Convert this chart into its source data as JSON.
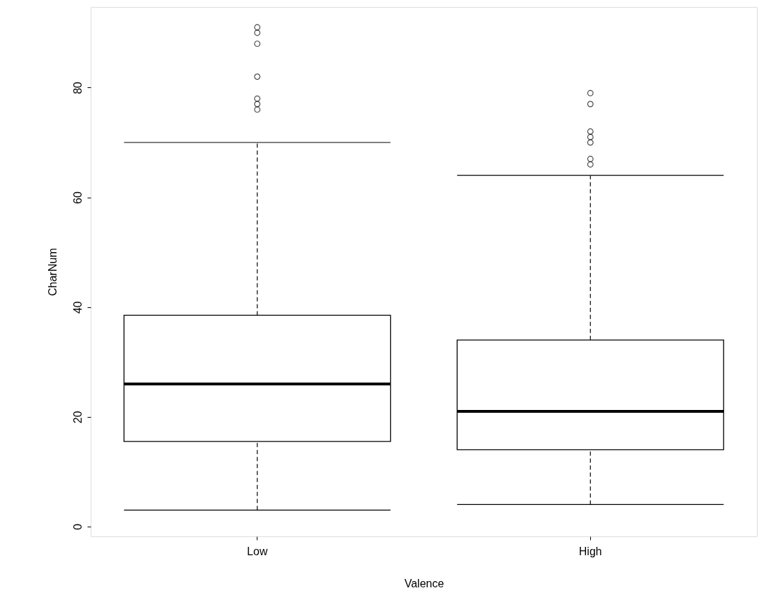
{
  "chart_data": {
    "type": "box",
    "categories": [
      "Low",
      "High"
    ],
    "boxes": [
      {
        "low": 3,
        "q1": 15.5,
        "median": 26,
        "q3": 38.5,
        "high": 70,
        "outliers": [
          91,
          90,
          88,
          82,
          78,
          77,
          76
        ]
      },
      {
        "low": 4,
        "q1": 14,
        "median": 21,
        "q3": 34,
        "high": 64,
        "outliers": [
          79,
          77,
          72,
          71,
          70,
          67,
          66
        ]
      }
    ],
    "xlabel": "Valence",
    "ylabel": "CharNum",
    "ylim": [
      -1.8,
      94.7
    ],
    "yticks": [
      0,
      20,
      40,
      60,
      80
    ],
    "grid": false
  }
}
